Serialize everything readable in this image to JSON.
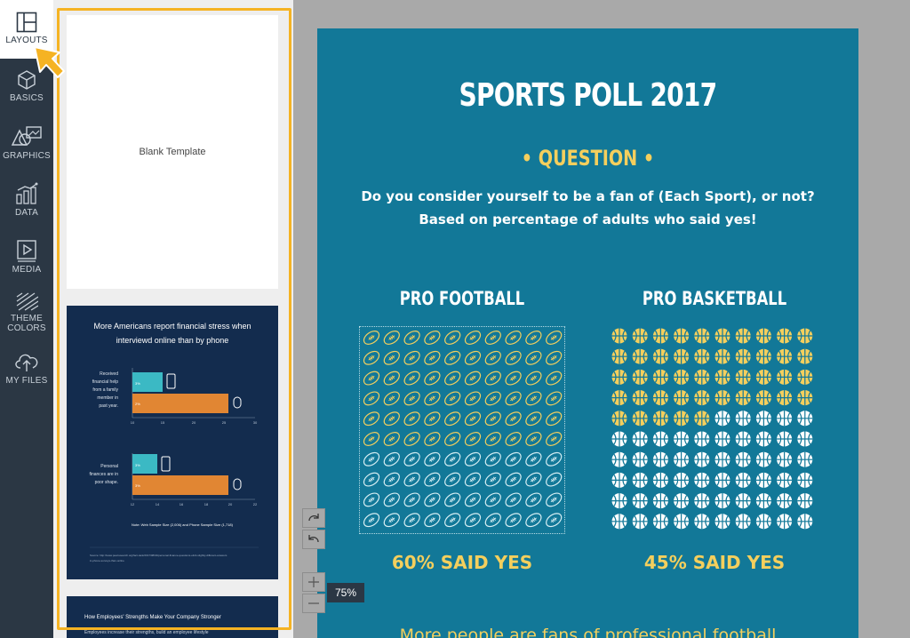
{
  "sidebar": {
    "items": [
      {
        "label": "LAYOUTS",
        "icon": "layouts-icon",
        "active": true
      },
      {
        "label": "BASICS",
        "icon": "cube-icon"
      },
      {
        "label": "GRAPHICS",
        "icon": "graphics-icon"
      },
      {
        "label": "DATA",
        "icon": "chart-icon"
      },
      {
        "label": "MEDIA",
        "icon": "media-icon"
      },
      {
        "label": "THEME\nCOLORS",
        "label_line1": "THEME",
        "label_line2": "COLORS",
        "icon": "theme-colors-icon"
      },
      {
        "label": "MY FILES",
        "icon": "upload-cloud-icon"
      }
    ]
  },
  "templates": {
    "blank": {
      "label": "Blank Template"
    },
    "finance": {
      "title_line1": "More Americans report financial stress when",
      "title_line2": "interviewd online than by phone",
      "group1_label": [
        "Received",
        "financial help",
        "from a family",
        "member in",
        "past year."
      ],
      "group2_label": [
        "Personal",
        "finances are in",
        "poor shape."
      ],
      "bar1_web": "3%",
      "bar1_phone": "2%",
      "bar2_web": "3%",
      "bar2_phone": "3%",
      "axis1": [
        "10",
        "15",
        "20",
        "25",
        "30"
      ],
      "axis2": [
        "12",
        "14",
        "16",
        "18",
        "20",
        "22"
      ],
      "note": "Note: Web Sample Size (2,006) and Phone Sample Size (1,718)",
      "source_line1": "Source: http://www.pewresearch.org/fact-tank/2017/08/04/personal-finance-questions-elicit-slightly-different-answers",
      "source_line2": "in-phone-surveys-than-online"
    },
    "employees": {
      "title": "How Employees' Strengths Make Your Company Stronger",
      "subtitle": "Employees increase their strengths, build an employee lifestyle"
    }
  },
  "poster": {
    "title": "SPORTS POLL 2017",
    "question": "• QUESTION •",
    "line1": "Do you consider yourself to be a fan of (Each Sport), or not?",
    "line2": "Based on percentage of adults who said yes!",
    "col1_title": "PRO FOOTBALL",
    "col2_title": "PRO BASKETBALL",
    "col1_result": "60% SAID YES",
    "col2_result": "45% SAID YES",
    "col1_percent": 60,
    "col2_percent": 45,
    "footer": "More people are fans of professional football",
    "colors": {
      "background": "#127898",
      "highlight": "#f4cf5d",
      "muted": "#d6eef3"
    }
  },
  "controls": {
    "redo_icon": "redo-icon",
    "undo_icon": "undo-icon",
    "zoom_in_icon": "plus-icon",
    "zoom_out_icon": "minus-icon",
    "zoom_level": "75%"
  }
}
